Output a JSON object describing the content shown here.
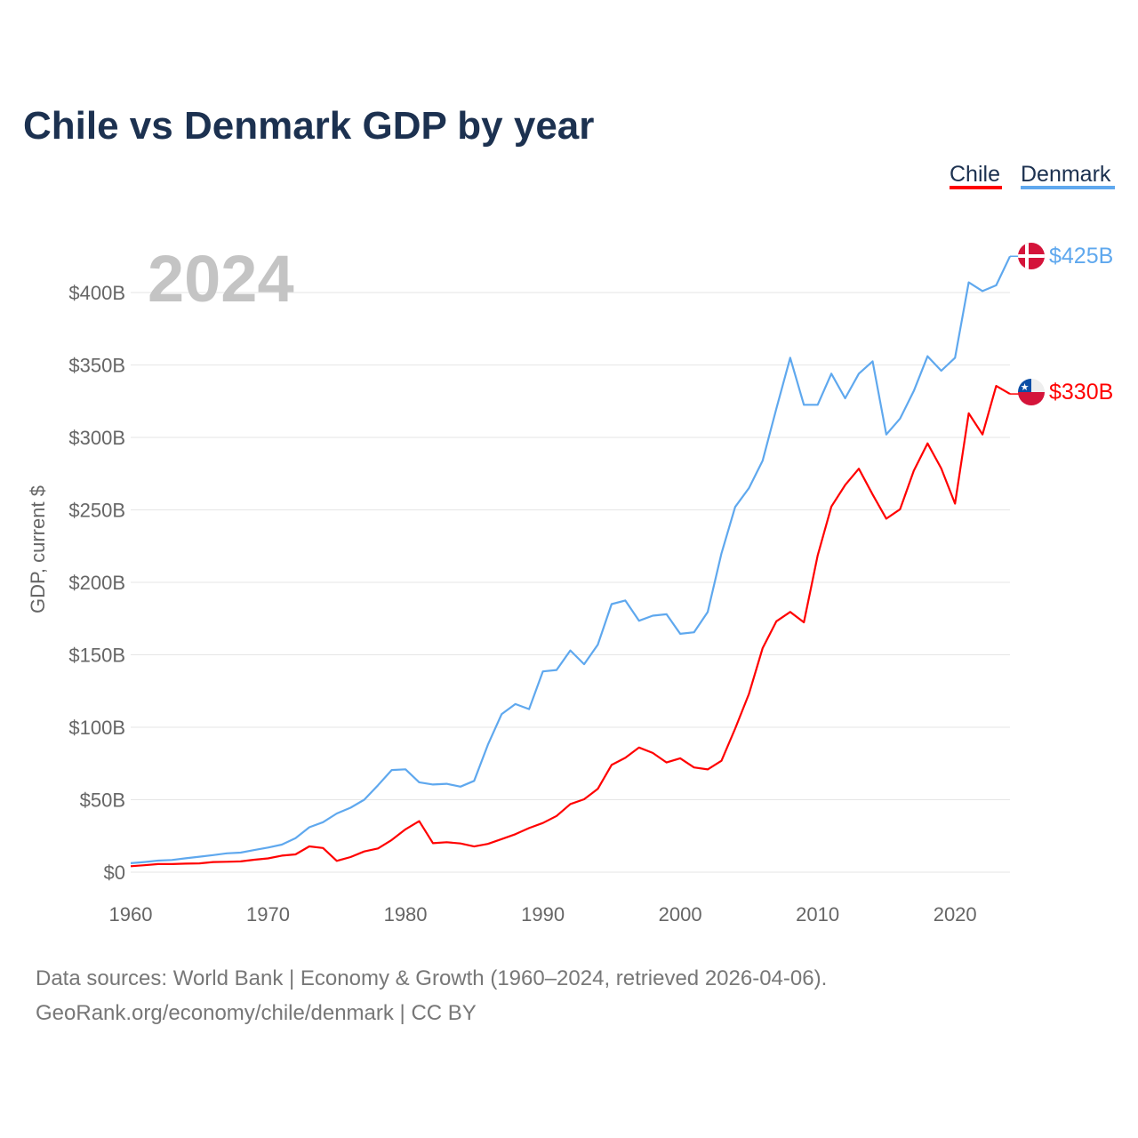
{
  "chart_data": {
    "type": "line",
    "title": "Chile vs Denmark GDP by year",
    "ylabel": "GDP, current $",
    "xlabel": "",
    "xlim": [
      1960,
      2024
    ],
    "ylim": [
      0,
      400
    ],
    "grid": true,
    "legend_placement": "top-right",
    "current_year": "2024",
    "x_ticks": [
      "1960",
      "1970",
      "1980",
      "1990",
      "2000",
      "2010",
      "2020"
    ],
    "x_tick_values": [
      1960,
      1970,
      1980,
      1990,
      2000,
      2010,
      2020
    ],
    "y_ticks": [
      "$0",
      "$50B",
      "$100B",
      "$150B",
      "$200B",
      "$250B",
      "$300B",
      "$350B",
      "$400B"
    ],
    "y_tick_values": [
      0,
      50,
      100,
      150,
      200,
      250,
      300,
      350,
      400
    ],
    "unit": "billions USD",
    "x": [
      1960,
      1961,
      1962,
      1963,
      1964,
      1965,
      1966,
      1967,
      1968,
      1969,
      1970,
      1971,
      1972,
      1973,
      1974,
      1975,
      1976,
      1977,
      1978,
      1979,
      1980,
      1981,
      1982,
      1983,
      1984,
      1985,
      1986,
      1987,
      1988,
      1989,
      1990,
      1991,
      1992,
      1993,
      1994,
      1995,
      1996,
      1997,
      1998,
      1999,
      2000,
      2001,
      2002,
      2003,
      2004,
      2005,
      2006,
      2007,
      2008,
      2009,
      2010,
      2011,
      2012,
      2013,
      2014,
      2015,
      2016,
      2017,
      2018,
      2019,
      2020,
      2021,
      2022,
      2023,
      2024
    ],
    "series": [
      {
        "name": "Chile",
        "color": "#ff0000",
        "end_label": "$330B",
        "flag": "chile-flag",
        "values": [
          4.1,
          4.8,
          5.6,
          5.6,
          5.9,
          6.1,
          7,
          7.2,
          7.4,
          8.6,
          9.5,
          11.4,
          12.3,
          17.8,
          16.7,
          7.8,
          10.4,
          14.3,
          16.4,
          22.2,
          29.6,
          35.2,
          20,
          20.7,
          19.8,
          17.7,
          19.5,
          22.8,
          26.2,
          30.4,
          33.9,
          38.8,
          47,
          50.3,
          57.5,
          74,
          78.9,
          86,
          82.3,
          75.7,
          78.6,
          72.3,
          70.9,
          76.9,
          99.1,
          123,
          154.6,
          173.1,
          179.6,
          172.4,
          218.5,
          252.3,
          267.1,
          278.4,
          260.6,
          243.9,
          250.4,
          277,
          295.9,
          278.6,
          254.3,
          316.6,
          302,
          335.5,
          330
        ]
      },
      {
        "name": "Denmark",
        "color": "#5fa8ee",
        "end_label": "$425B",
        "flag": "denmark-flag",
        "values": [
          6.2,
          7,
          8,
          8.4,
          9.6,
          10.7,
          11.8,
          13,
          13.5,
          15.3,
          17,
          19,
          23.5,
          31,
          34.5,
          40.5,
          44.5,
          50,
          60,
          70.5,
          71,
          62,
          60.5,
          61,
          59,
          63,
          88,
          109,
          116,
          112.5,
          138.5,
          139.5,
          153,
          143.5,
          157,
          185,
          187.5,
          173.5,
          177,
          178,
          164.5,
          165.5,
          179.5,
          220,
          252,
          265,
          284,
          320,
          355,
          322.5,
          322.5,
          344,
          327,
          344,
          352.5,
          302,
          313,
          332,
          356,
          346,
          355,
          407,
          401,
          405,
          425
        ]
      }
    ]
  },
  "footer": {
    "line1": "Data sources: World Bank | Economy & Growth (1960–2024, retrieved 2026-04-06).",
    "line2": "GeoRank.org/economy/chile/denmark | CC BY"
  }
}
